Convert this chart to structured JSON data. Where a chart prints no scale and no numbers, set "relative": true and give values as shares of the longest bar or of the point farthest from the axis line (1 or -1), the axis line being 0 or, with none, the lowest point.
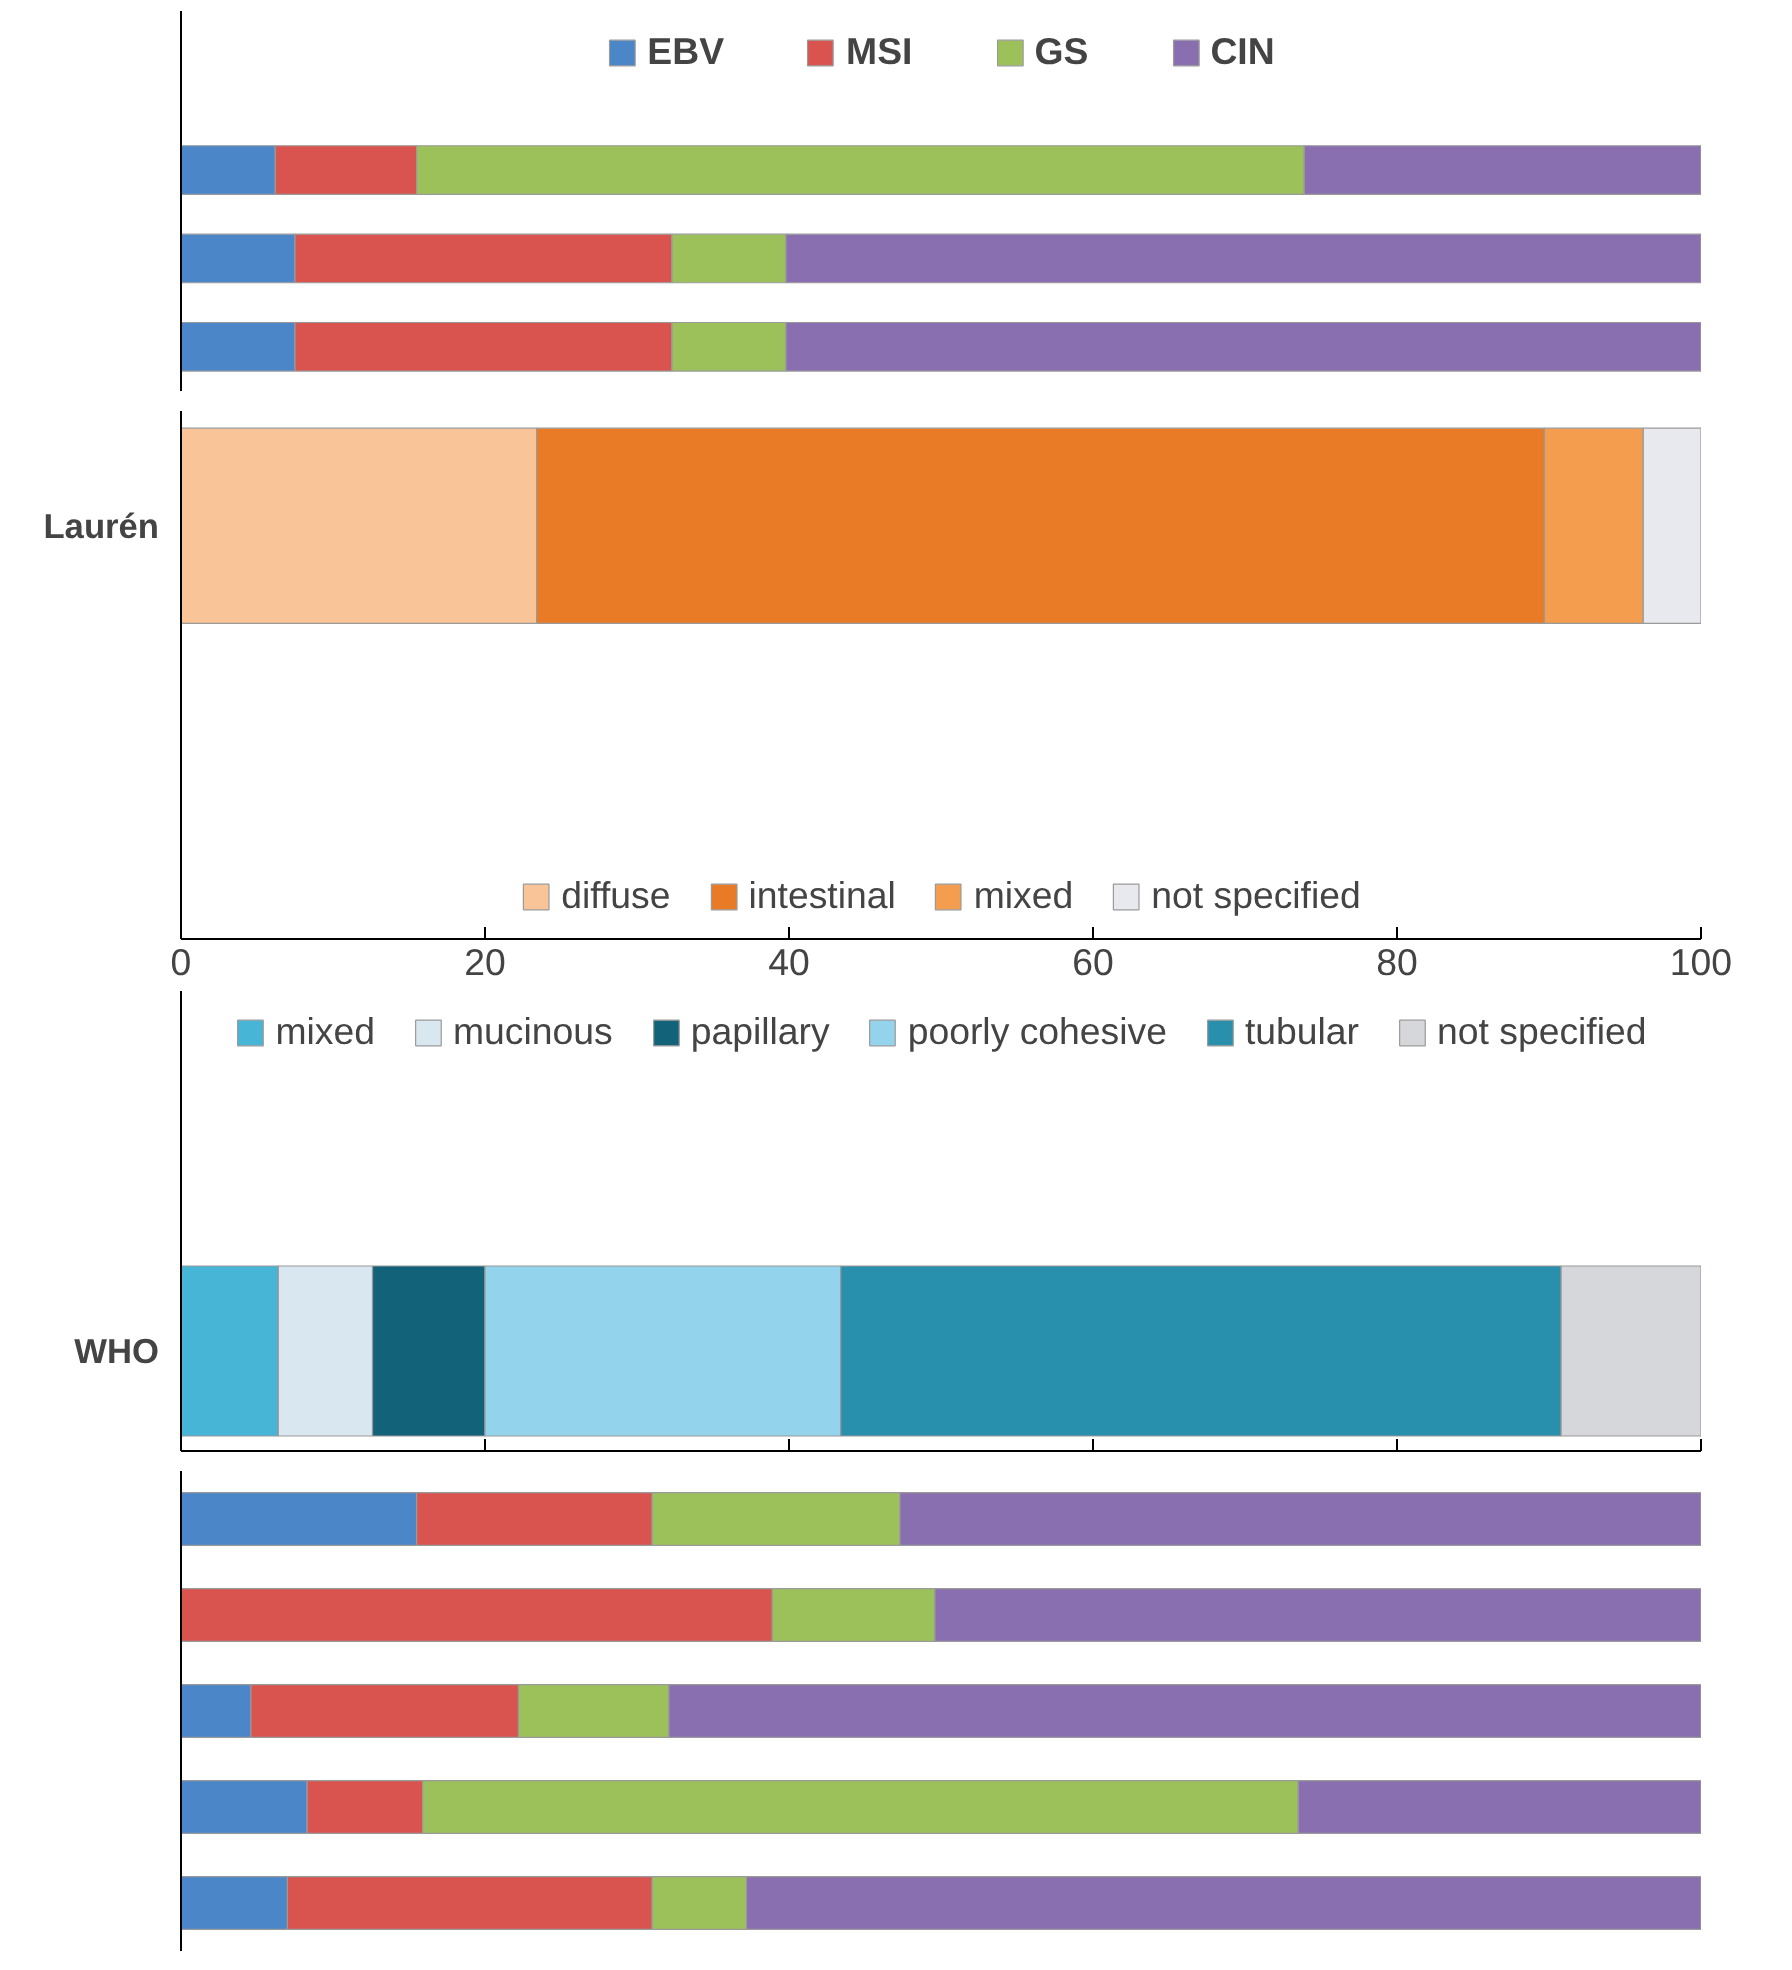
{
  "chart_data": [
    {
      "type": "bar",
      "orientation": "horizontal",
      "stacked": true,
      "relative": true,
      "legend": "top",
      "categories": [
        null,
        null,
        null
      ],
      "series": [
        {
          "name": "EBV",
          "color": "#4a86c8",
          "values": [
            0.062,
            0.075,
            0.075
          ]
        },
        {
          "name": "MSI",
          "color": "#d9534f",
          "values": [
            0.093,
            0.248,
            0.248
          ]
        },
        {
          "name": "GS",
          "color": "#9cc05a",
          "values": [
            0.584,
            0.075,
            0.075
          ]
        },
        {
          "name": "CIN",
          "color": "#8a6fb0",
          "values": [
            0.261,
            0.602,
            0.602
          ]
        }
      ]
    },
    {
      "type": "bar",
      "orientation": "horizontal",
      "stacked": true,
      "legend": "bottom",
      "categories": [
        "Laurén"
      ],
      "xlim": [
        0,
        100
      ],
      "xticks": [
        0,
        20,
        40,
        60,
        80,
        100
      ],
      "series": [
        {
          "name": "diffuse",
          "color": "#f8c498",
          "values": [
            23.4
          ]
        },
        {
          "name": "intestinal",
          "color": "#ea7b26",
          "values": [
            66.3
          ]
        },
        {
          "name": "mixed",
          "color": "#f59d4e",
          "values": [
            6.5
          ]
        },
        {
          "name": "not specified",
          "color": "#e8e9ee",
          "values": [
            3.8
          ]
        }
      ]
    },
    {
      "type": "bar",
      "orientation": "horizontal",
      "stacked": true,
      "legend": "top",
      "tick_labels": "y",
      "categories": [
        "WHO"
      ],
      "xlim": [
        0,
        100
      ],
      "xticks": [
        0,
        20,
        40,
        60,
        80,
        100
      ],
      "series": [
        {
          "name": "mixed",
          "color": "#47b5d6",
          "values": [
            6.4
          ]
        },
        {
          "name": "mucinous",
          "color": "#d9e8f0",
          "values": [
            6.2
          ]
        },
        {
          "name": "papillary",
          "color": "#12637a",
          "values": [
            7.4
          ]
        },
        {
          "name": "poorly cohesive",
          "color": "#93d3ec",
          "values": [
            23.4
          ]
        },
        {
          "name": "tubular",
          "color": "#2890ad",
          "values": [
            47.4
          ]
        },
        {
          "name": "not specified",
          "color": "#d6d7da",
          "values": [
            9.2
          ]
        }
      ]
    },
    {
      "type": "bar",
      "orientation": "horizontal",
      "stacked": true,
      "relative": true,
      "categories": [
        null,
        null,
        null,
        null,
        null
      ],
      "series": [
        {
          "color": "#4a86c8",
          "values": [
            0.155,
            0,
            0.046,
            0.083,
            0.07
          ]
        },
        {
          "color": "#d9534f",
          "values": [
            0.155,
            0.389,
            0.176,
            0.076,
            0.24
          ]
        },
        {
          "color": "#9cc05a",
          "values": [
            0.163,
            0.107,
            0.099,
            0.576,
            0.062
          ]
        },
        {
          "color": "#8a6fb0",
          "values": [
            0.527,
            0.504,
            0.679,
            0.265,
            0.628
          ]
        }
      ]
    }
  ]
}
